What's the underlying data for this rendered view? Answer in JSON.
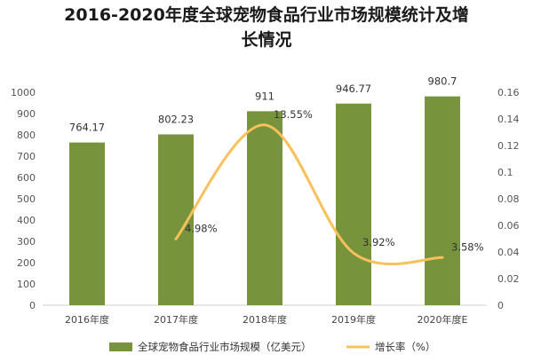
{
  "title_line1": "2016-2020年度全球宠物食品行业市场规模统计及增",
  "title_line2": "长情况",
  "chart_data": {
    "type": "bar",
    "categories": [
      "2016年度",
      "2017年度",
      "2018年度",
      "2019年度",
      "2020年度E"
    ],
    "series": [
      {
        "name": "全球宠物食品行业市场规模（亿美元）",
        "type": "bar",
        "axis": "left",
        "color": "#77933c",
        "values": [
          764.17,
          802.23,
          911,
          946.77,
          980.7
        ],
        "labels": [
          "764.17",
          "802.23",
          "911",
          "946.77",
          "980.7"
        ]
      },
      {
        "name": "增长率（%）",
        "type": "line",
        "axis": "right",
        "color": "#f9c05c",
        "values": [
          null,
          0.0498,
          0.1355,
          0.0392,
          0.0358
        ],
        "labels": [
          "",
          "4.98%",
          "13.55%",
          "3.92%",
          "3.58%"
        ]
      }
    ],
    "y_left": {
      "min": 0,
      "max": 1000,
      "ticks": [
        "0",
        "100",
        "200",
        "300",
        "400",
        "500",
        "600",
        "700",
        "800",
        "900",
        "1000"
      ]
    },
    "y_right": {
      "min": 0,
      "max": 0.16,
      "ticks": [
        "0",
        "0.02",
        "0.04",
        "0.06",
        "0.08",
        "0.1",
        "0.12",
        "0.14",
        "0.16"
      ]
    },
    "grid": false,
    "legend": "bottom"
  }
}
